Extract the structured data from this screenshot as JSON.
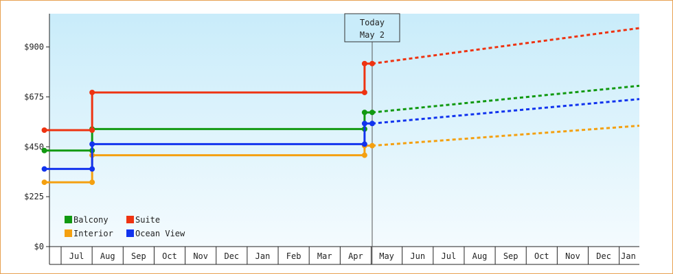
{
  "colors": {
    "border": "#e8a050",
    "plot_top": "#c9ecfa",
    "plot_bottom": "#f4fbfe",
    "axis": "#222222",
    "today_line": "#555555"
  },
  "chart_data": {
    "type": "line",
    "step": true,
    "title": "",
    "xlabel": "",
    "ylabel": "",
    "ylim": [
      0,
      1050
    ],
    "y_ticks": [
      "$0",
      "$225",
      "$450",
      "$675",
      "$900"
    ],
    "x_ticks": [
      "Jul",
      "Aug",
      "Sep",
      "Oct",
      "Nov",
      "Dec",
      "Jan",
      "Feb",
      "Mar",
      "Apr",
      "May",
      "Jun",
      "Jul",
      "Aug",
      "Sep",
      "Oct",
      "Nov",
      "Dec",
      "Jan"
    ],
    "grid": false,
    "legend_position": "bottom-left",
    "today_marker": {
      "line1": "Today",
      "line2": "May 2",
      "x": "May 2"
    },
    "series": [
      {
        "name": "Balcony",
        "color": "#119911",
        "points": [
          [
            "Jun 15",
            433
          ],
          [
            "Aug 1",
            433
          ],
          [
            "Aug 1",
            530
          ],
          [
            "Apr 25",
            530
          ],
          [
            "Apr 25",
            605
          ],
          [
            "May 2",
            605
          ]
        ],
        "projection": [
          [
            "May 2",
            605
          ],
          [
            "Jan 26",
            725
          ]
        ]
      },
      {
        "name": "Suite",
        "color": "#ee3311",
        "points": [
          [
            "Jun 15",
            525
          ],
          [
            "Aug 1",
            525
          ],
          [
            "Aug 1",
            695
          ],
          [
            "Apr 25",
            695
          ],
          [
            "Apr 25",
            825
          ],
          [
            "May 2",
            825
          ]
        ],
        "projection": [
          [
            "May 2",
            825
          ],
          [
            "Jan 26",
            985
          ]
        ]
      },
      {
        "name": "Interior",
        "color": "#f4a010",
        "points": [
          [
            "Jun 15",
            290
          ],
          [
            "Aug 1",
            290
          ],
          [
            "Aug 1",
            412
          ],
          [
            "Apr 25",
            412
          ],
          [
            "Apr 25",
            455
          ],
          [
            "May 2",
            455
          ]
        ],
        "projection": [
          [
            "May 2",
            455
          ],
          [
            "Jan 26",
            545
          ]
        ]
      },
      {
        "name": "Ocean View",
        "color": "#1133ee",
        "points": [
          [
            "Jun 15",
            350
          ],
          [
            "Aug 1",
            350
          ],
          [
            "Aug 1",
            462
          ],
          [
            "Apr 25",
            462
          ],
          [
            "Apr 25",
            555
          ],
          [
            "May 2",
            555
          ]
        ],
        "projection": [
          [
            "May 2",
            555
          ],
          [
            "Jan 26",
            665
          ]
        ]
      }
    ]
  }
}
